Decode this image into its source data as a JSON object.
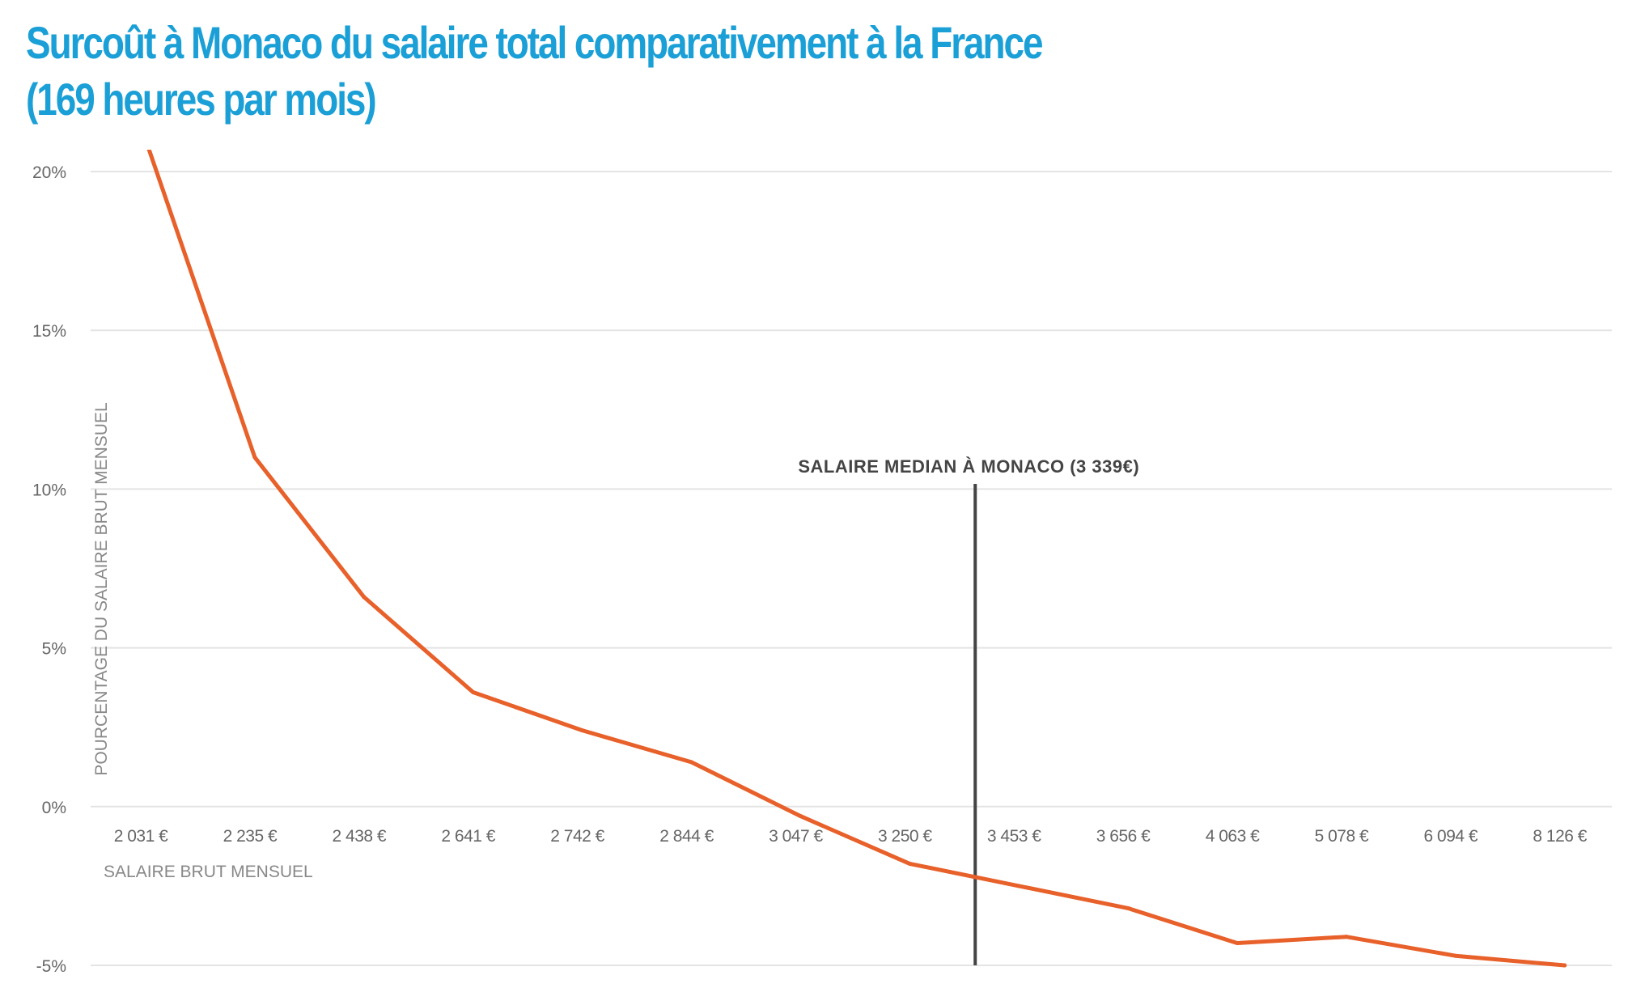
{
  "title": {
    "line1": "Surcoût à Monaco du salaire total comparativement à la France",
    "line2": "(169 heures par mois)"
  },
  "colors": {
    "title": "#1a9fd6",
    "line": "#e8602a",
    "grid": "#e4e4e4",
    "annotation": "#444444",
    "tick_text": "#666666",
    "axis_label_text": "#888888"
  },
  "chart_data": {
    "type": "line",
    "title": "Surcoût à Monaco du salaire total comparativement à la France (169 heures par mois)",
    "xlabel": "SALAIRE BRUT MENSUEL",
    "ylabel": "POURCENTAGE DU SALAIRE BRUT MENSUEL",
    "categories": [
      "2 031 €",
      "2 235 €",
      "2 438 €",
      "2 641 €",
      "2 742 €",
      "2 844 €",
      "3 047 €",
      "3 250 €",
      "3 453 €",
      "3 656 €",
      "4 063 €",
      "5 078 €",
      "6 094 €",
      "8 126 €"
    ],
    "yticks": [
      {
        "value": 20,
        "label": "20%"
      },
      {
        "value": 15,
        "label": "15%"
      },
      {
        "value": 10,
        "label": "10%"
      },
      {
        "value": 5,
        "label": "5%"
      },
      {
        "value": 0,
        "label": "0%"
      },
      {
        "value": -5,
        "label": "-5%"
      }
    ],
    "ylim": [
      -5,
      20
    ],
    "grid": true,
    "series": [
      {
        "values": [
          21,
          11,
          6.6,
          3.6,
          2.4,
          1.4,
          -0.3,
          -1.8,
          -2.5,
          -3.2,
          -4.3,
          -4.1,
          -4.7,
          -5
        ]
      }
    ],
    "annotation": {
      "label": "SALAIRE MEDIAN À MONACO (3 339€)",
      "x_position": 7.6
    }
  }
}
